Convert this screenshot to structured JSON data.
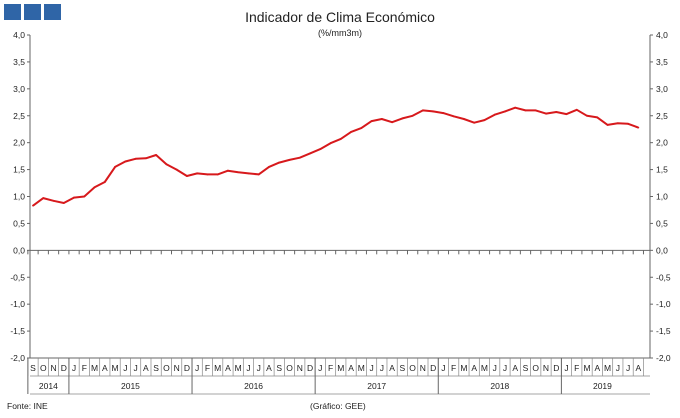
{
  "header": {
    "logo_color": "#2f65a7",
    "title": "Indicador de Clima Económico",
    "subtitle": "(%/mm3m)"
  },
  "footer": {
    "source": "Fonte: INE",
    "credit": "(Gráfico: GEE)"
  },
  "chart_data": {
    "type": "line",
    "title": "Indicador de Clima Económico",
    "subtitle": "(%/mm3m)",
    "ylim": [
      -2.0,
      4.0
    ],
    "y_ticks": [
      "4,0",
      "3,5",
      "3,0",
      "2,5",
      "2,0",
      "1,5",
      "1,0",
      "0,5",
      "0,0",
      "-0,5",
      "-1,0",
      "-1,5",
      "-2,0"
    ],
    "x_month_labels": [
      "S",
      "O",
      "N",
      "D",
      "J",
      "F",
      "M",
      "A",
      "M",
      "J",
      "J",
      "A",
      "S",
      "O",
      "N",
      "D",
      "J",
      "F",
      "M",
      "A",
      "M",
      "J",
      "J",
      "A",
      "S",
      "O",
      "N",
      "D",
      "J",
      "F",
      "M",
      "A",
      "M",
      "J",
      "J",
      "A",
      "S",
      "O",
      "N",
      "D",
      "J",
      "F",
      "M",
      "A",
      "M",
      "J",
      "J",
      "A",
      "S",
      "O",
      "N",
      "D",
      "J",
      "F",
      "M",
      "A",
      "M",
      "J",
      "J",
      "A"
    ],
    "years": [
      {
        "label": "2014",
        "start": 0,
        "end": 4
      },
      {
        "label": "2015",
        "start": 4,
        "end": 16
      },
      {
        "label": "2016",
        "start": 16,
        "end": 28
      },
      {
        "label": "2017",
        "start": 28,
        "end": 40
      },
      {
        "label": "2018",
        "start": 40,
        "end": 52
      },
      {
        "label": "2019",
        "start": 52,
        "end": 60
      }
    ],
    "line_color": "#d7191c",
    "grid": false,
    "series": [
      {
        "values": [
          0.83,
          0.97,
          0.92,
          0.88,
          0.98,
          1.0,
          1.17,
          1.27,
          1.55,
          1.65,
          1.7,
          1.71,
          1.77,
          1.6,
          1.5,
          1.38,
          1.43,
          1.41,
          1.41,
          1.48,
          1.45,
          1.43,
          1.41,
          1.55,
          1.63,
          1.68,
          1.72,
          1.8,
          1.88,
          1.99,
          2.07,
          2.2,
          2.27,
          2.4,
          2.44,
          2.38,
          2.45,
          2.5,
          2.6,
          2.58,
          2.55,
          2.49,
          2.44,
          2.37,
          2.42,
          2.52,
          2.58,
          2.65,
          2.6,
          2.6,
          2.54,
          2.57,
          2.53,
          2.61,
          2.5,
          2.47,
          2.33,
          2.36,
          2.35,
          2.28
        ]
      }
    ]
  }
}
